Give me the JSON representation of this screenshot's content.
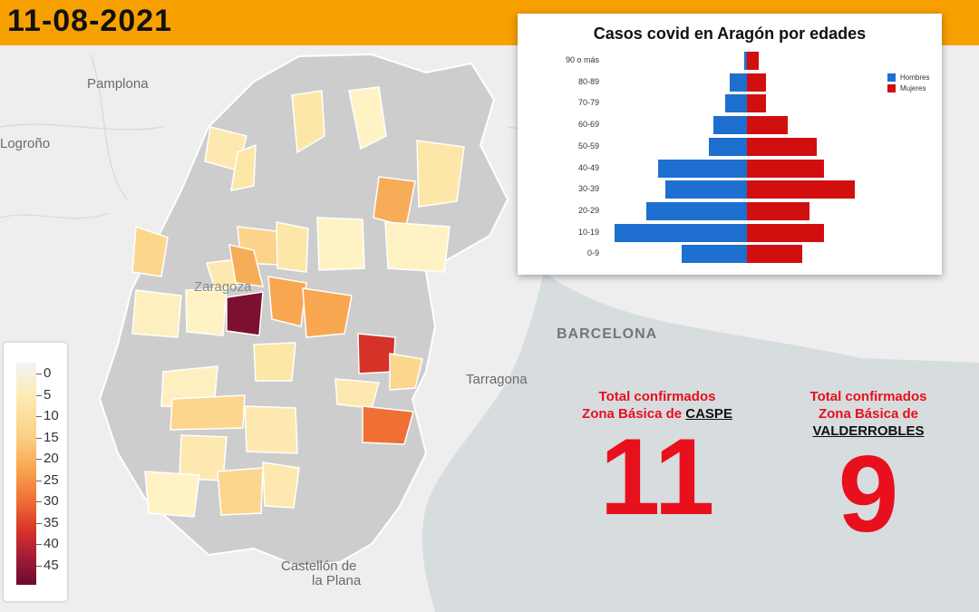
{
  "header": {
    "date": "11-08-2021"
  },
  "map": {
    "cities": [
      {
        "name": "Pamplona"
      },
      {
        "name": "Logroño"
      },
      {
        "name": "BARCELONA"
      },
      {
        "name": "Tarragona"
      },
      {
        "name": "Zaragoza"
      },
      {
        "name": "Castellón de"
      },
      {
        "name": "la Plana"
      }
    ],
    "legend_labels": [
      "0",
      "5",
      "10",
      "15",
      "20",
      "25",
      "30",
      "35",
      "40",
      "45"
    ],
    "colors": {
      "low": "#fdefc0",
      "mid": "#f9a650",
      "high": "#d73228",
      "max": "#6b0c2c",
      "base": "#cfcfcf"
    }
  },
  "chart_data": {
    "type": "bar",
    "title": "Casos covid en Aragón por edades",
    "categories": [
      "90 o más",
      "80-89",
      "70-79",
      "60-69",
      "50-59",
      "40-49",
      "30-39",
      "20-29",
      "10-19",
      "0-9"
    ],
    "series": [
      {
        "name": "Hombres",
        "color": "#1e6fd0",
        "values": [
          1,
          7,
          9,
          14,
          16,
          37,
          34,
          42,
          55,
          27
        ]
      },
      {
        "name": "Mujeres",
        "color": "#d20f0f",
        "values": [
          5,
          8,
          8,
          17,
          29,
          32,
          45,
          26,
          32,
          23
        ]
      }
    ],
    "legend_position": "top-right",
    "grid": false
  },
  "stats": [
    {
      "title": "Total confirmados",
      "prefix": "Zona Básica de ",
      "zone": "CASPE",
      "value": "11"
    },
    {
      "title": "Total confirmados",
      "prefix": "Zona Básica de ",
      "zone": "VALDERROBLES",
      "value": "9"
    }
  ]
}
